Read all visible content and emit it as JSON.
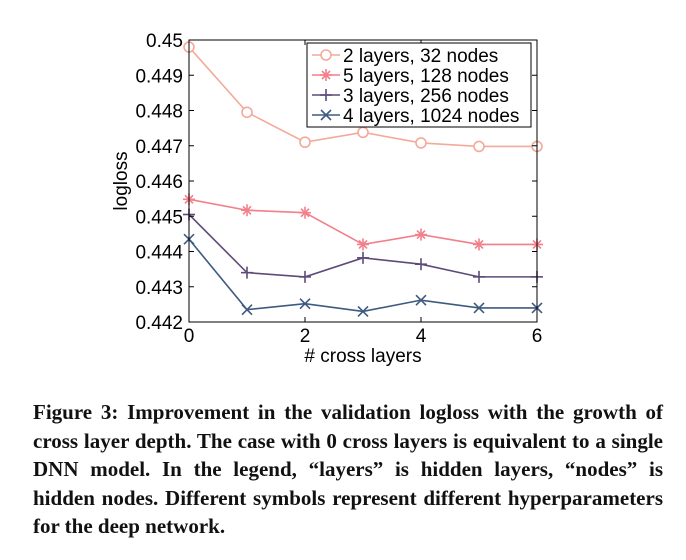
{
  "chart_data": {
    "type": "line",
    "title": "",
    "xlabel": "# cross layers",
    "ylabel": "logloss",
    "xlim": [
      0,
      6
    ],
    "ylim": [
      0.442,
      0.45
    ],
    "x_ticks": [
      0,
      2,
      4,
      6
    ],
    "y_ticks": [
      0.442,
      0.443,
      0.444,
      0.445,
      0.446,
      0.447,
      0.448,
      0.449,
      0.45
    ],
    "x": [
      0,
      1,
      2,
      3,
      4,
      5,
      6
    ],
    "legend_position": "top-right",
    "grid": false,
    "series": [
      {
        "name": "2 layers, 32 nodes",
        "marker": "circle",
        "color": "#f4a99a",
        "values": [
          0.4498,
          0.44795,
          0.4471,
          0.44738,
          0.44708,
          0.44698,
          0.44698
        ]
      },
      {
        "name": "5 layers, 128 nodes",
        "marker": "asterisk",
        "color": "#f27f8a",
        "values": [
          0.44548,
          0.44517,
          0.4451,
          0.4442,
          0.44448,
          0.4442,
          0.4442
        ]
      },
      {
        "name": "3 layers, 256 nodes",
        "marker": "plus",
        "color": "#5e4a78",
        "values": [
          0.44505,
          0.4434,
          0.44328,
          0.44382,
          0.44364,
          0.44328,
          0.44328
        ]
      },
      {
        "name": "4 layers, 1024 nodes",
        "marker": "x",
        "color": "#3e5a80",
        "values": [
          0.44435,
          0.44235,
          0.44252,
          0.4423,
          0.44262,
          0.4424,
          0.4424
        ]
      }
    ]
  },
  "caption": "Figure 3: Improvement in the validation logloss with the growth of cross layer depth. The case with 0 cross layers is equivalent to a single DNN model. In the legend, “layers” is hidden layers, “nodes” is hidden nodes. Different symbols represent different hyperparameters for the deep network."
}
